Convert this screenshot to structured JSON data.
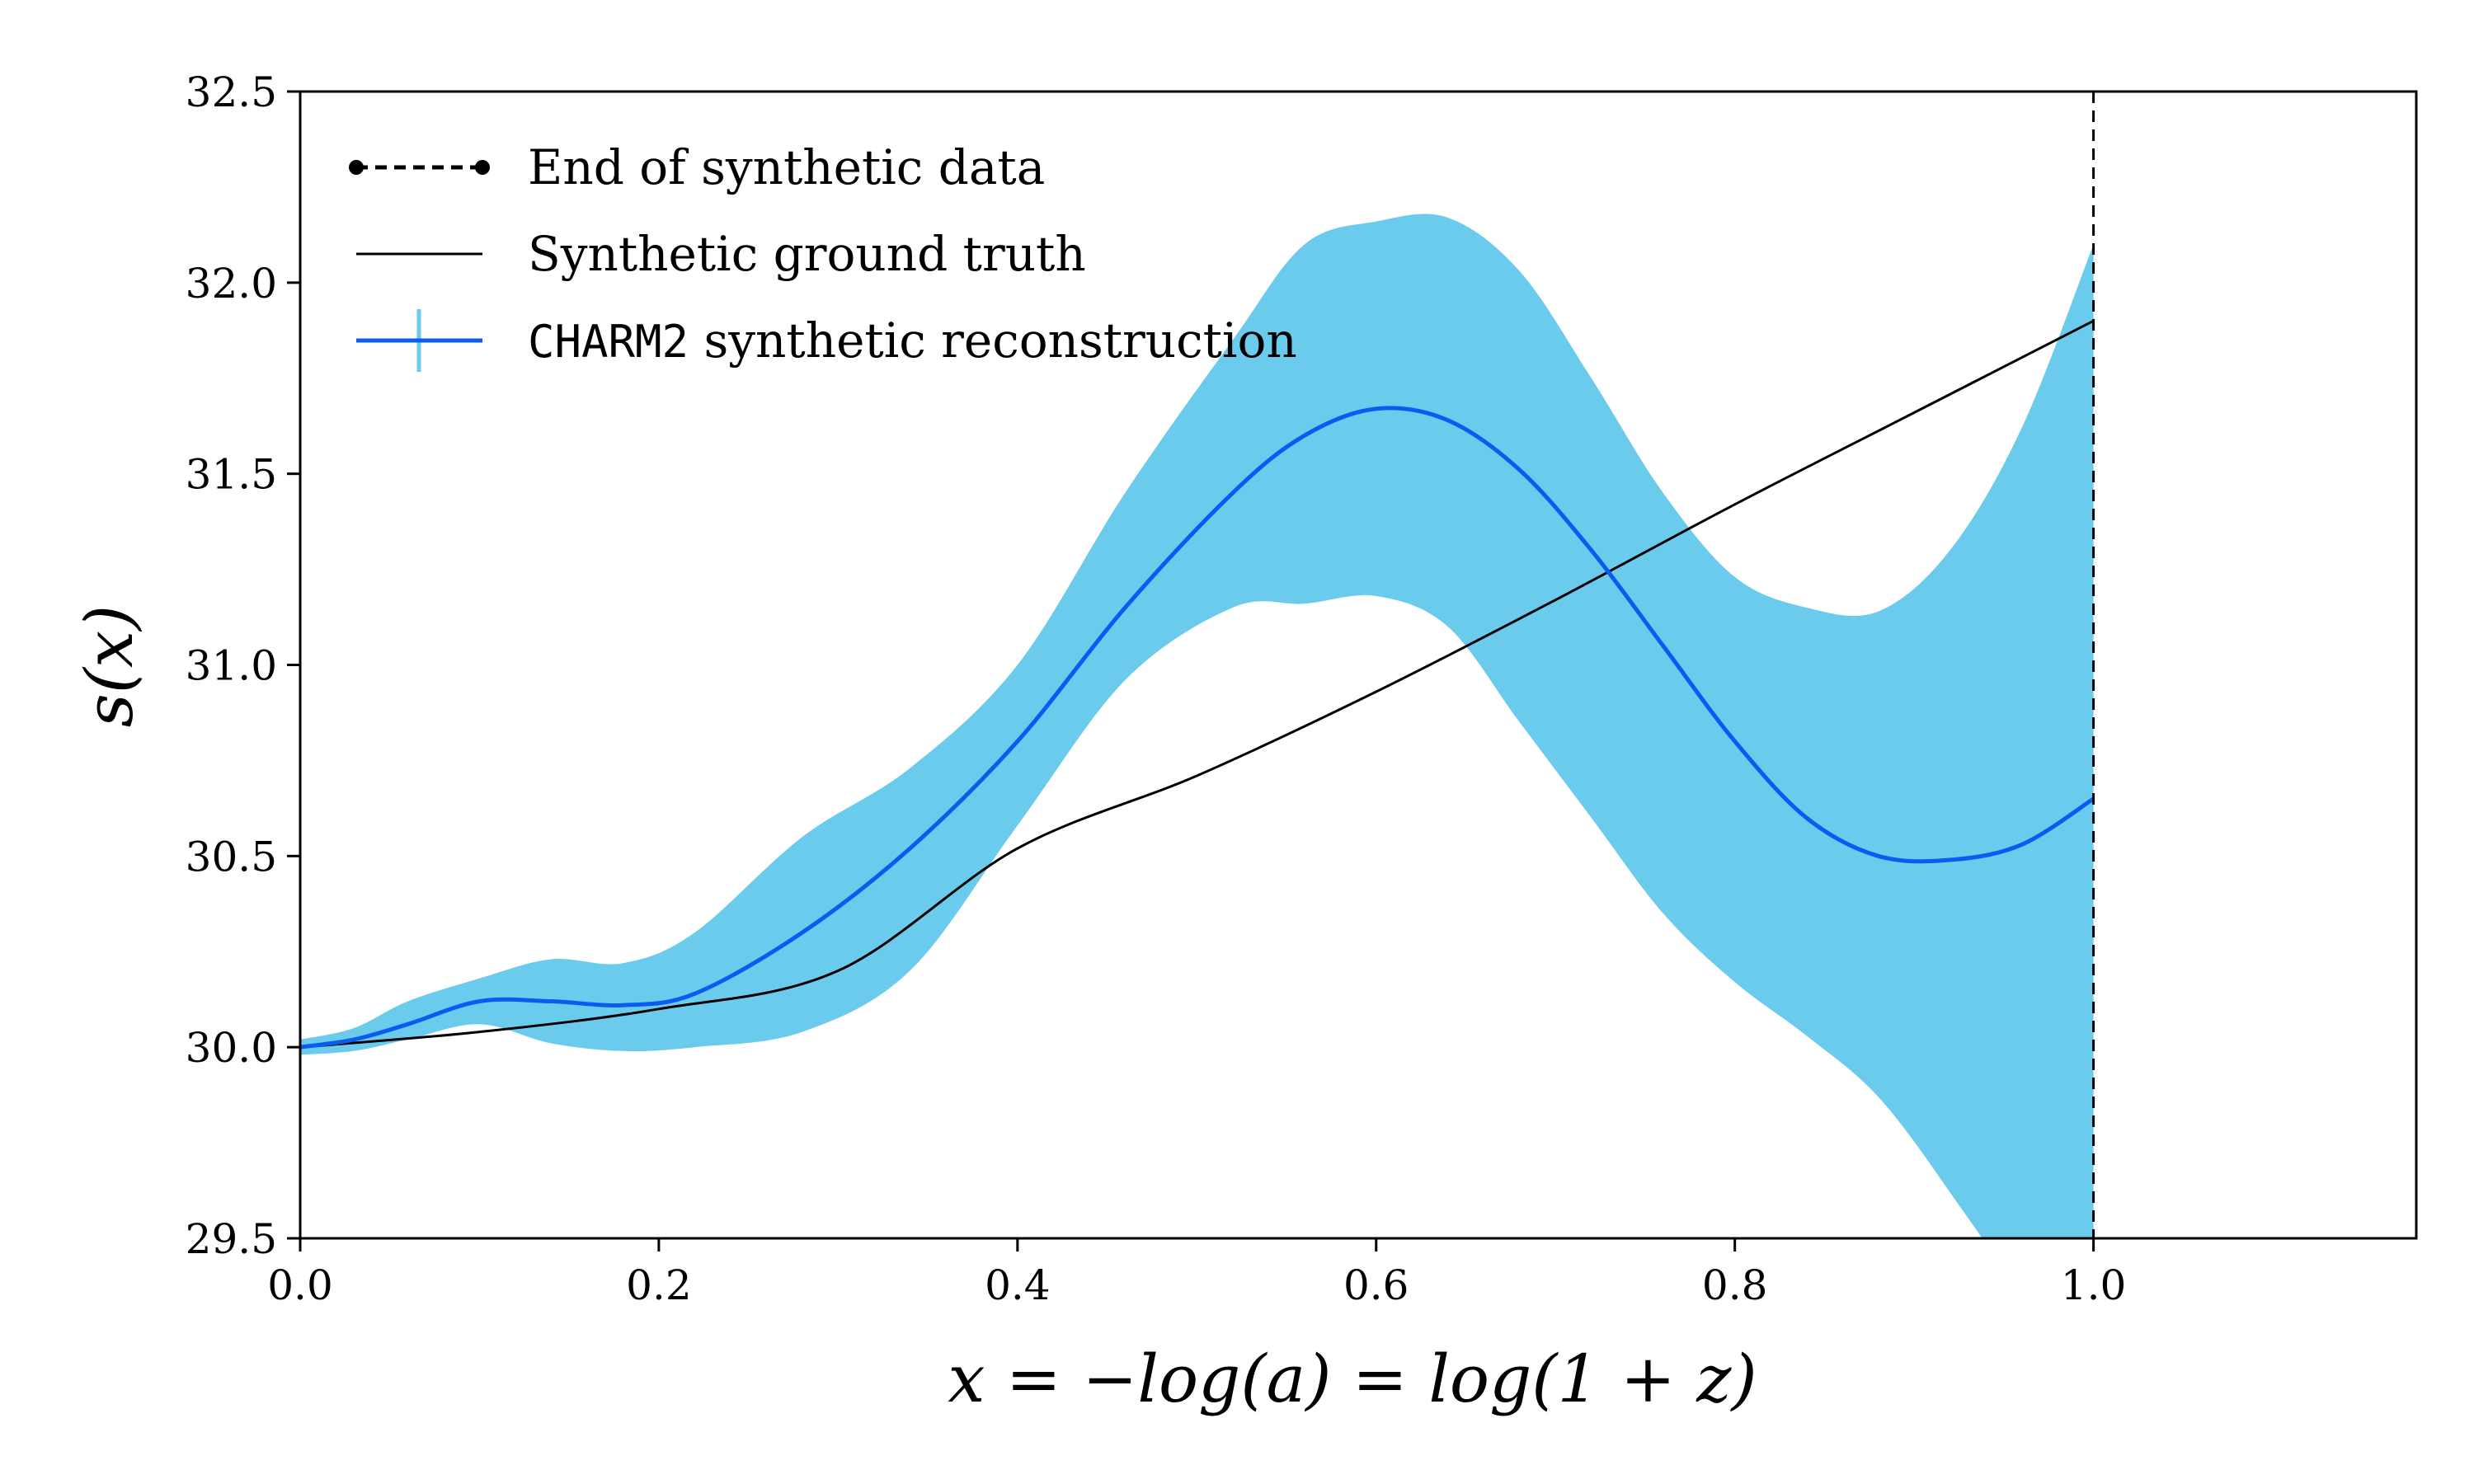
{
  "chart_data": {
    "type": "line",
    "xlabel": "x = −log(a) = log(1 + z)",
    "ylabel": "s(x)",
    "xlim": [
      0.0,
      1.18
    ],
    "ylim": [
      29.5,
      32.5
    ],
    "xticks": [
      "0.0",
      "0.2",
      "0.4",
      "0.6",
      "0.8",
      "1.0"
    ],
    "xtick_values": [
      0.0,
      0.2,
      0.4,
      0.6,
      0.8,
      1.0
    ],
    "yticks": [
      "29.5",
      "30.0",
      "30.5",
      "31.0",
      "31.5",
      "32.0",
      "32.5"
    ],
    "ytick_values": [
      29.5,
      30.0,
      30.5,
      31.0,
      31.5,
      32.0,
      32.5
    ],
    "grid": false,
    "legend_position": "top-left",
    "legend": [
      {
        "label": "End of synthetic data",
        "prefix": ""
      },
      {
        "label": "Synthetic ground truth",
        "prefix": ""
      },
      {
        "label": " synthetic reconstruction",
        "prefix": "CHARM2"
      }
    ],
    "colors": {
      "band": "#6bcbec",
      "reconstruction": "#0a5cf0",
      "truth": "#000000",
      "marker": "#000000"
    },
    "end_marker_x": 1.0,
    "series": [
      {
        "name": "Synthetic ground truth",
        "x": [
          0.0,
          0.1,
          0.2,
          0.3,
          0.4,
          0.5,
          0.6,
          0.7,
          0.8,
          0.9,
          1.0
        ],
        "y": [
          30.0,
          30.04,
          30.1,
          30.2,
          30.52,
          30.71,
          30.93,
          31.17,
          31.42,
          31.66,
          31.9
        ]
      },
      {
        "name": "CHARM2 synthetic reconstruction",
        "x": [
          0.0,
          0.03,
          0.06,
          0.1,
          0.14,
          0.18,
          0.22,
          0.28,
          0.34,
          0.4,
          0.46,
          0.52,
          0.56,
          0.6,
          0.64,
          0.68,
          0.72,
          0.76,
          0.8,
          0.84,
          0.88,
          0.92,
          0.96,
          1.0
        ],
        "y": [
          30.0,
          30.02,
          30.06,
          30.12,
          30.12,
          30.11,
          30.14,
          30.3,
          30.52,
          30.8,
          31.15,
          31.45,
          31.6,
          31.67,
          31.64,
          31.51,
          31.3,
          31.05,
          30.8,
          30.6,
          30.5,
          30.49,
          30.53,
          30.65
        ]
      }
    ],
    "band": {
      "name": "CHARM2 reconstruction uncertainty",
      "x": [
        0.0,
        0.03,
        0.06,
        0.1,
        0.14,
        0.18,
        0.22,
        0.28,
        0.34,
        0.4,
        0.46,
        0.52,
        0.56,
        0.6,
        0.64,
        0.68,
        0.72,
        0.76,
        0.8,
        0.84,
        0.88,
        0.92,
        0.96,
        1.0
      ],
      "upper": [
        30.02,
        30.05,
        30.12,
        30.18,
        30.23,
        30.22,
        30.3,
        30.55,
        30.73,
        31.0,
        31.45,
        31.85,
        32.1,
        32.16,
        32.17,
        32.03,
        31.75,
        31.45,
        31.23,
        31.15,
        31.14,
        31.3,
        31.62,
        32.1
      ],
      "lower": [
        29.98,
        29.99,
        30.02,
        30.06,
        30.01,
        29.99,
        30.0,
        30.04,
        30.2,
        30.58,
        30.96,
        31.15,
        31.16,
        31.18,
        31.1,
        30.85,
        30.6,
        30.35,
        30.17,
        30.03,
        29.87,
        29.62,
        29.33,
        28.9
      ]
    }
  }
}
